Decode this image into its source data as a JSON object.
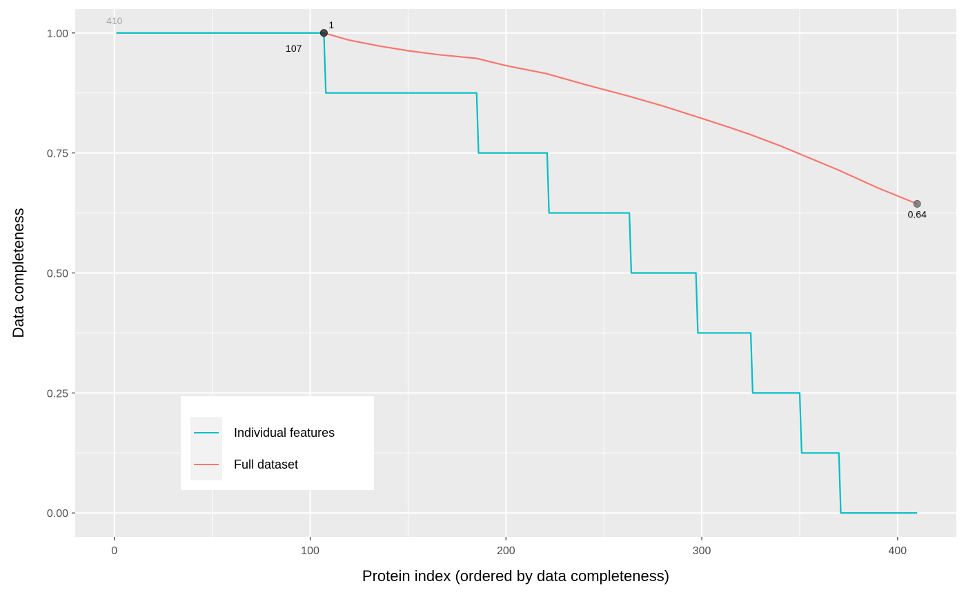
{
  "chart_data": {
    "type": "line",
    "xlabel": "Protein index (ordered by data completeness)",
    "ylabel": "Data completeness",
    "xlim": [
      -20,
      430
    ],
    "ylim": [
      -0.05,
      1.05
    ],
    "x_ticks": [
      0,
      100,
      200,
      300,
      400
    ],
    "x_tick_labels": [
      "0",
      "100",
      "200",
      "300",
      "400"
    ],
    "y_ticks": [
      0,
      0.25,
      0.5,
      0.75,
      1.0
    ],
    "y_tick_labels": [
      "0.00",
      "0.25",
      "0.50",
      "0.75",
      "1.00"
    ],
    "grid": true,
    "legend_position": "bottom-left inside",
    "series": [
      {
        "name": "Individual features",
        "color": "#00BFC4",
        "points": [
          [
            1,
            1.0
          ],
          [
            107,
            1.0
          ],
          [
            108,
            0.875
          ],
          [
            185,
            0.875
          ],
          [
            186,
            0.75
          ],
          [
            221,
            0.75
          ],
          [
            222,
            0.625
          ],
          [
            263,
            0.625
          ],
          [
            264,
            0.5
          ],
          [
            297,
            0.5
          ],
          [
            298,
            0.375
          ],
          [
            325,
            0.375
          ],
          [
            326,
            0.25
          ],
          [
            350,
            0.25
          ],
          [
            351,
            0.125
          ],
          [
            370,
            0.125
          ],
          [
            371,
            0.0
          ],
          [
            410,
            0.0
          ]
        ]
      },
      {
        "name": "Full dataset",
        "color": "#F8766D",
        "points": [
          [
            107,
            1.0
          ],
          [
            120,
            0.985
          ],
          [
            135,
            0.973
          ],
          [
            150,
            0.963
          ],
          [
            165,
            0.955
          ],
          [
            185,
            0.947
          ],
          [
            200,
            0.932
          ],
          [
            221,
            0.915
          ],
          [
            240,
            0.893
          ],
          [
            263,
            0.868
          ],
          [
            280,
            0.848
          ],
          [
            297,
            0.826
          ],
          [
            315,
            0.802
          ],
          [
            325,
            0.788
          ],
          [
            340,
            0.765
          ],
          [
            350,
            0.748
          ],
          [
            370,
            0.714
          ],
          [
            390,
            0.677
          ],
          [
            410,
            0.644
          ]
        ]
      }
    ],
    "markers": [
      {
        "x": 107,
        "y": 1.0,
        "color": "#1a1a1a"
      },
      {
        "x": 410,
        "y": 0.644,
        "color": "#666666"
      }
    ],
    "annotations": [
      {
        "text": "410",
        "x": 0,
        "y": 1.0,
        "style": "grey",
        "pos": "above"
      },
      {
        "text": "1",
        "x": 107,
        "y": 1.0,
        "style": "dark",
        "pos": "above-right"
      },
      {
        "text": "107",
        "x": 107,
        "y": 1.0,
        "style": "dark",
        "pos": "below-left"
      },
      {
        "text": "0.64",
        "x": 410,
        "y": 0.644,
        "style": "dark",
        "pos": "below"
      }
    ]
  }
}
